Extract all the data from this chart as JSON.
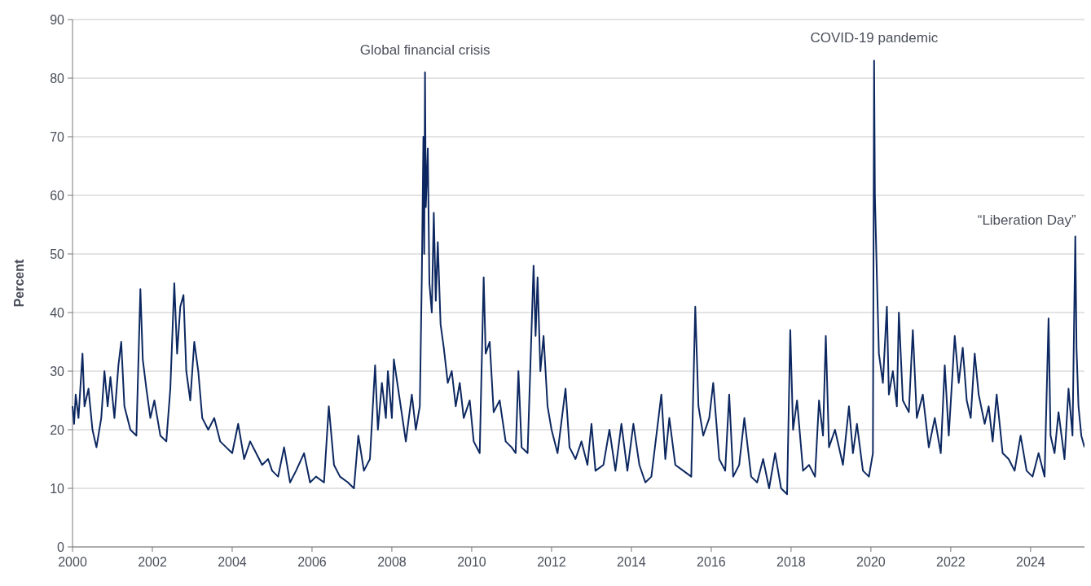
{
  "chart_data": {
    "type": "line",
    "ylabel": "Percent",
    "xlim": [
      2000,
      2025.35
    ],
    "xticks": [
      2000,
      2002,
      2004,
      2006,
      2008,
      2010,
      2012,
      2014,
      2016,
      2018,
      2020,
      2022,
      2024
    ],
    "ylim": [
      0,
      90
    ],
    "yticks": [
      0,
      10,
      20,
      30,
      40,
      50,
      60,
      70,
      80,
      90
    ],
    "grid": "y",
    "line_style": "solid",
    "annotations": [
      {
        "text": "Global financial crisis",
        "x": 2008.83,
        "y": 81
      },
      {
        "text": "COVID-19 pandemic",
        "x": 2020.08,
        "y": 83
      },
      "“Liberation Day”"
    ],
    "series": [
      {
        "color": "#0d2860",
        "x": [
          2000.0,
          2000.04,
          2000.08,
          2000.15,
          2000.25,
          2000.3,
          2000.4,
          2000.5,
          2000.6,
          2000.72,
          2000.8,
          2000.88,
          2000.95,
          2001.05,
          2001.15,
          2001.22,
          2001.3,
          2001.45,
          2001.6,
          2001.7,
          2001.76,
          2001.85,
          2001.95,
          2002.05,
          2002.2,
          2002.35,
          2002.45,
          2002.55,
          2002.62,
          2002.7,
          2002.78,
          2002.85,
          2002.95,
          2003.05,
          2003.15,
          2003.25,
          2003.4,
          2003.55,
          2003.7,
          2003.85,
          2004.0,
          2004.15,
          2004.3,
          2004.45,
          2004.6,
          2004.75,
          2004.9,
          2005.0,
          2005.15,
          2005.3,
          2005.45,
          2005.6,
          2005.8,
          2005.95,
          2006.1,
          2006.3,
          2006.42,
          2006.55,
          2006.7,
          2006.9,
          2007.05,
          2007.16,
          2007.3,
          2007.45,
          2007.58,
          2007.65,
          2007.75,
          2007.85,
          2007.9,
          2008.0,
          2008.05,
          2008.2,
          2008.35,
          2008.5,
          2008.6,
          2008.7,
          2008.75,
          2008.79,
          2008.81,
          2008.83,
          2008.85,
          2008.9,
          2008.94,
          2009.0,
          2009.05,
          2009.1,
          2009.15,
          2009.22,
          2009.3,
          2009.4,
          2009.5,
          2009.6,
          2009.7,
          2009.8,
          2009.95,
          2010.05,
          2010.2,
          2010.3,
          2010.35,
          2010.45,
          2010.55,
          2010.7,
          2010.85,
          2011.0,
          2011.1,
          2011.17,
          2011.25,
          2011.4,
          2011.55,
          2011.6,
          2011.65,
          2011.72,
          2011.8,
          2011.9,
          2012.0,
          2012.15,
          2012.35,
          2012.45,
          2012.6,
          2012.75,
          2012.9,
          2013.0,
          2013.1,
          2013.3,
          2013.45,
          2013.6,
          2013.75,
          2013.9,
          2014.05,
          2014.2,
          2014.35,
          2014.5,
          2014.75,
          2014.85,
          2014.95,
          2015.1,
          2015.3,
          2015.5,
          2015.6,
          2015.68,
          2015.8,
          2015.95,
          2016.05,
          2016.2,
          2016.35,
          2016.45,
          2016.55,
          2016.7,
          2016.83,
          2017.0,
          2017.15,
          2017.3,
          2017.45,
          2017.6,
          2017.75,
          2017.9,
          2017.98,
          2018.05,
          2018.15,
          2018.3,
          2018.45,
          2018.6,
          2018.7,
          2018.8,
          2018.87,
          2018.95,
          2019.1,
          2019.3,
          2019.45,
          2019.55,
          2019.65,
          2019.8,
          2019.95,
          2020.05,
          2020.08,
          2020.1,
          2020.15,
          2020.2,
          2020.3,
          2020.4,
          2020.45,
          2020.55,
          2020.65,
          2020.7,
          2020.8,
          2020.95,
          2021.05,
          2021.15,
          2021.3,
          2021.45,
          2021.6,
          2021.75,
          2021.85,
          2021.95,
          2022.1,
          2022.2,
          2022.3,
          2022.4,
          2022.5,
          2022.6,
          2022.7,
          2022.85,
          2022.95,
          2023.05,
          2023.15,
          2023.3,
          2023.45,
          2023.6,
          2023.75,
          2023.9,
          2024.05,
          2024.2,
          2024.35,
          2024.45,
          2024.5,
          2024.6,
          2024.7,
          2024.85,
          2024.95,
          2025.05,
          2025.12,
          2025.15,
          2025.2,
          2025.27,
          2025.35
        ],
        "values": [
          24,
          21,
          26,
          22,
          33,
          24,
          27,
          20,
          17,
          22,
          30,
          24,
          29,
          22,
          31,
          35,
          24,
          20,
          19,
          44,
          32,
          27,
          22,
          25,
          19,
          18,
          27,
          45,
          33,
          41,
          43,
          30,
          25,
          35,
          30,
          22,
          20,
          22,
          18,
          17,
          16,
          21,
          15,
          18,
          16,
          14,
          15,
          13,
          12,
          17,
          11,
          13,
          16,
          11,
          12,
          11,
          24,
          14,
          12,
          11,
          10,
          19,
          13,
          15,
          31,
          20,
          28,
          22,
          30,
          22,
          32,
          25,
          18,
          26,
          20,
          24,
          46,
          70,
          50,
          81,
          58,
          68,
          45,
          40,
          57,
          42,
          52,
          38,
          34,
          28,
          30,
          24,
          28,
          22,
          25,
          18,
          16,
          46,
          33,
          35,
          23,
          25,
          18,
          17,
          16,
          30,
          17,
          16,
          48,
          36,
          46,
          30,
          36,
          24,
          20,
          16,
          27,
          17,
          15,
          18,
          14,
          21,
          13,
          14,
          20,
          13,
          21,
          13,
          21,
          14,
          11,
          12,
          26,
          15,
          22,
          14,
          13,
          12,
          41,
          24,
          19,
          22,
          28,
          15,
          13,
          26,
          12,
          14,
          22,
          12,
          11,
          15,
          10,
          16,
          10,
          9,
          37,
          20,
          25,
          13,
          14,
          12,
          25,
          19,
          36,
          17,
          20,
          14,
          24,
          16,
          21,
          13,
          12,
          16,
          83,
          60,
          46,
          33,
          28,
          41,
          26,
          30,
          24,
          40,
          25,
          23,
          37,
          22,
          26,
          17,
          22,
          16,
          31,
          19,
          36,
          28,
          34,
          25,
          22,
          33,
          26,
          21,
          24,
          18,
          26,
          16,
          15,
          13,
          19,
          13,
          12,
          16,
          12,
          39,
          19,
          16,
          23,
          15,
          27,
          19,
          53,
          34,
          24,
          19,
          17
        ]
      }
    ]
  }
}
